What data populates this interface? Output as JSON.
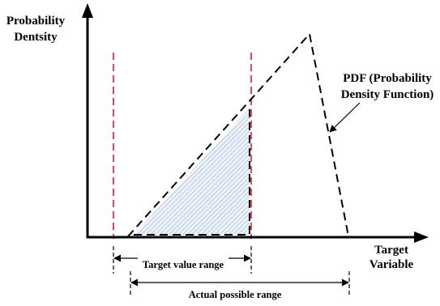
{
  "axes": {
    "y_label_line1": "Probability",
    "y_label_line2": "Dentsity",
    "x_label_line1": "Target",
    "x_label_line2": "Variable"
  },
  "annotations": {
    "pdf_line1": "PDF (Probability",
    "pdf_line2": "Density Function)",
    "target_range": "Target value range",
    "actual_range": "Actual possible range"
  },
  "colors": {
    "boundary": "#e8182b",
    "hatch": "#b9c8e3",
    "curve": "#000000"
  }
}
